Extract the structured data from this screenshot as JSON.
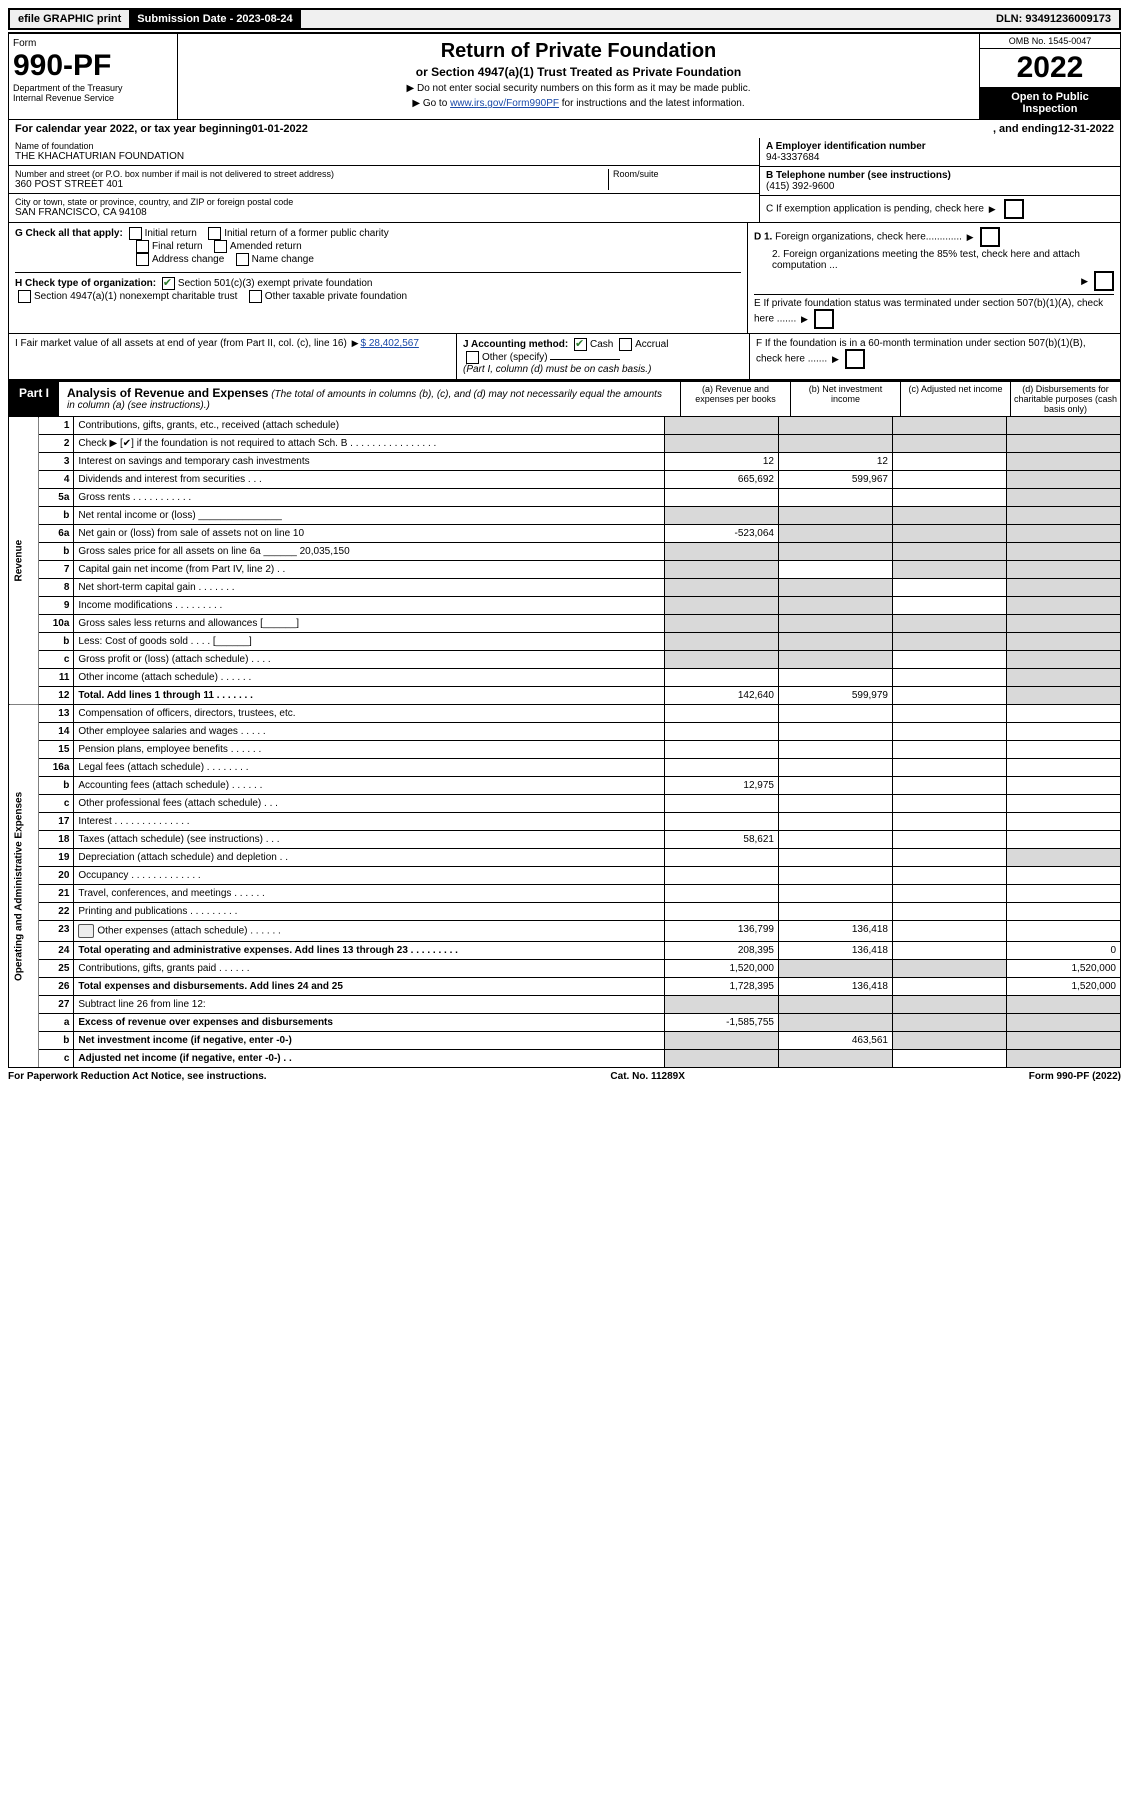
{
  "top": {
    "efile": "efile GRAPHIC print",
    "sub_label": "Submission Date - 2023-08-24",
    "dln": "DLN: 93491236009173"
  },
  "head": {
    "form_word": "Form",
    "form_num": "990-PF",
    "dept": "Department of the Treasury",
    "irs": "Internal Revenue Service",
    "title": "Return of Private Foundation",
    "sub": "or Section 4947(a)(1) Trust Treated as Private Foundation",
    "instr1": "▶ Do not enter social security numbers on this form as it may be made public.",
    "instr2_pre": "▶ Go to ",
    "instr2_link": "www.irs.gov/Form990PF",
    "instr2_post": " for instructions and the latest information.",
    "omb": "OMB No. 1545-0047",
    "year": "2022",
    "inspect": "Open to Public Inspection"
  },
  "cal": {
    "pre": "For calendar year 2022, or tax year beginning ",
    "begin": "01-01-2022",
    "mid": ", and ending ",
    "end": "12-31-2022"
  },
  "info": {
    "name_lbl": "Name of foundation",
    "name": "THE KHACHATURIAN FOUNDATION",
    "addr_lbl": "Number and street (or P.O. box number if mail is not delivered to street address)",
    "addr": "360 POST STREET 401",
    "room_lbl": "Room/suite",
    "city_lbl": "City or town, state or province, country, and ZIP or foreign postal code",
    "city": "SAN FRANCISCO, CA  94108",
    "a_lbl": "A Employer identification number",
    "a": "94-3337684",
    "b_lbl": "B Telephone number (see instructions)",
    "b": "(415) 392-9600",
    "c": "C If exemption application is pending, check here",
    "d1": "D 1. Foreign organizations, check here.............",
    "d2": "2. Foreign organizations meeting the 85% test, check here and attach computation ...",
    "e": "E If private foundation status was terminated under section 507(b)(1)(A), check here .......",
    "f": "F If the foundation is in a 60-month termination under section 507(b)(1)(B), check here ......."
  },
  "g": {
    "lbl": "G Check all that apply:",
    "opts": [
      "Initial return",
      "Initial return of a former public charity",
      "Final return",
      "Amended return",
      "Address change",
      "Name change"
    ]
  },
  "h": {
    "lbl": "H Check type of organization:",
    "o1": "Section 501(c)(3) exempt private foundation",
    "o2": "Section 4947(a)(1) nonexempt charitable trust",
    "o3": "Other taxable private foundation"
  },
  "i": {
    "lbl": "I Fair market value of all assets at end of year (from Part II, col. (c), line 16)",
    "val": "$  28,402,567"
  },
  "j": {
    "lbl": "J Accounting method:",
    "o1": "Cash",
    "o2": "Accrual",
    "o3": "Other (specify)",
    "note": "(Part I, column (d) must be on cash basis.)"
  },
  "part1": {
    "tag": "Part I",
    "title": "Analysis of Revenue and Expenses",
    "note": "(The total of amounts in columns (b), (c), and (d) may not necessarily equal the amounts in column (a) (see instructions).)",
    "cols": [
      "(a) Revenue and expenses per books",
      "(b) Net investment income",
      "(c) Adjusted net income",
      "(d) Disbursements for charitable purposes (cash basis only)"
    ]
  },
  "sides": {
    "rev": "Revenue",
    "exp": "Operating and Administrative Expenses"
  },
  "rows": [
    {
      "n": "1",
      "d": "Contributions, gifts, grants, etc., received (attach schedule)",
      "a": "",
      "b": "",
      "c": "",
      "dd": "",
      "sa": 1,
      "sb": 1,
      "sc": 1,
      "sd": 1
    },
    {
      "n": "2",
      "d": "Check ▶ [✔] if the foundation is not required to attach Sch. B  .  .  .  .  .  .  .  .  .  .  .  .  .  .  .  .",
      "a": "",
      "b": "",
      "c": "",
      "dd": "",
      "sa": 1,
      "sb": 1,
      "sc": 1,
      "sd": 1
    },
    {
      "n": "3",
      "d": "Interest on savings and temporary cash investments",
      "a": "12",
      "b": "12",
      "c": "",
      "dd": "",
      "sd": 1
    },
    {
      "n": "4",
      "d": "Dividends and interest from securities   .   .   .",
      "a": "665,692",
      "b": "599,967",
      "c": "",
      "dd": "",
      "sd": 1
    },
    {
      "n": "5a",
      "d": "Gross rents   .   .   .   .   .   .   .   .   .   .   .",
      "a": "",
      "b": "",
      "c": "",
      "dd": "",
      "sd": 1
    },
    {
      "n": "b",
      "d": "Net rental income or (loss)  _______________",
      "a": "",
      "b": "",
      "c": "",
      "dd": "",
      "sa": 1,
      "sb": 1,
      "sc": 1,
      "sd": 1
    },
    {
      "n": "6a",
      "d": "Net gain or (loss) from sale of assets not on line 10",
      "a": "-523,064",
      "b": "",
      "c": "",
      "dd": "",
      "sb": 1,
      "sc": 1,
      "sd": 1
    },
    {
      "n": "b",
      "d": "Gross sales price for all assets on line 6a ______ 20,035,150",
      "a": "",
      "b": "",
      "c": "",
      "dd": "",
      "sa": 1,
      "sb": 1,
      "sc": 1,
      "sd": 1
    },
    {
      "n": "7",
      "d": "Capital gain net income (from Part IV, line 2)   .  .",
      "a": "",
      "b": "",
      "c": "",
      "dd": "",
      "sa": 1,
      "sc": 1,
      "sd": 1
    },
    {
      "n": "8",
      "d": "Net short-term capital gain  .   .   .   .   .   .   .",
      "a": "",
      "b": "",
      "c": "",
      "dd": "",
      "sa": 1,
      "sb": 1,
      "sd": 1
    },
    {
      "n": "9",
      "d": "Income modifications  .   .   .   .   .   .   .   .   .",
      "a": "",
      "b": "",
      "c": "",
      "dd": "",
      "sa": 1,
      "sb": 1,
      "sd": 1
    },
    {
      "n": "10a",
      "d": "Gross sales less returns and allowances  [______]",
      "a": "",
      "b": "",
      "c": "",
      "dd": "",
      "sa": 1,
      "sb": 1,
      "sc": 1,
      "sd": 1
    },
    {
      "n": "b",
      "d": "Less: Cost of goods sold   .   .   .   .   [______]",
      "a": "",
      "b": "",
      "c": "",
      "dd": "",
      "sa": 1,
      "sb": 1,
      "sc": 1,
      "sd": 1
    },
    {
      "n": "c",
      "d": "Gross profit or (loss) (attach schedule)   .   .   .   .",
      "a": "",
      "b": "",
      "c": "",
      "dd": "",
      "sa": 1,
      "sb": 1,
      "sd": 1
    },
    {
      "n": "11",
      "d": "Other income (attach schedule)   .   .   .   .   .   .",
      "a": "",
      "b": "",
      "c": "",
      "dd": "",
      "sd": 1
    },
    {
      "n": "12",
      "d": "Total. Add lines 1 through 11   .   .   .   .   .   .   .",
      "a": "142,640",
      "b": "599,979",
      "c": "",
      "dd": "",
      "bold": 1,
      "sd": 1
    },
    {
      "n": "13",
      "d": "Compensation of officers, directors, trustees, etc.",
      "a": "",
      "b": "",
      "c": "",
      "dd": ""
    },
    {
      "n": "14",
      "d": "Other employee salaries and wages   .   .   .   .   .",
      "a": "",
      "b": "",
      "c": "",
      "dd": ""
    },
    {
      "n": "15",
      "d": "Pension plans, employee benefits  .   .   .   .   .   .",
      "a": "",
      "b": "",
      "c": "",
      "dd": ""
    },
    {
      "n": "16a",
      "d": "Legal fees (attach schedule)  .   .   .   .   .   .   .   .",
      "a": "",
      "b": "",
      "c": "",
      "dd": ""
    },
    {
      "n": "b",
      "d": "Accounting fees (attach schedule)  .   .   .   .   .   .",
      "a": "12,975",
      "b": "",
      "c": "",
      "dd": ""
    },
    {
      "n": "c",
      "d": "Other professional fees (attach schedule)   .   .   .",
      "a": "",
      "b": "",
      "c": "",
      "dd": ""
    },
    {
      "n": "17",
      "d": "Interest  .   .   .   .   .   .   .   .   .   .   .   .   .   .",
      "a": "",
      "b": "",
      "c": "",
      "dd": ""
    },
    {
      "n": "18",
      "d": "Taxes (attach schedule) (see instructions)   .   .   .",
      "a": "58,621",
      "b": "",
      "c": "",
      "dd": ""
    },
    {
      "n": "19",
      "d": "Depreciation (attach schedule) and depletion   .   .",
      "a": "",
      "b": "",
      "c": "",
      "dd": "",
      "sd": 1
    },
    {
      "n": "20",
      "d": "Occupancy  .   .   .   .   .   .   .   .   .   .   .   .   .",
      "a": "",
      "b": "",
      "c": "",
      "dd": ""
    },
    {
      "n": "21",
      "d": "Travel, conferences, and meetings  .   .   .   .   .   .",
      "a": "",
      "b": "",
      "c": "",
      "dd": ""
    },
    {
      "n": "22",
      "d": "Printing and publications  .   .   .   .   .   .   .   .   .",
      "a": "",
      "b": "",
      "c": "",
      "dd": ""
    },
    {
      "n": "23",
      "d": "Other expenses (attach schedule)  .   .   .   .   .   .",
      "a": "136,799",
      "b": "136,418",
      "c": "",
      "dd": "",
      "icon": 1
    },
    {
      "n": "24",
      "d": "Total operating and administrative expenses. Add lines 13 through 23   .   .   .   .   .   .   .   .   .",
      "a": "208,395",
      "b": "136,418",
      "c": "",
      "dd": "0",
      "bold": 1
    },
    {
      "n": "25",
      "d": "Contributions, gifts, grants paid   .   .   .   .   .   .",
      "a": "1,520,000",
      "b": "",
      "c": "",
      "dd": "1,520,000",
      "sb": 1,
      "sc": 1
    },
    {
      "n": "26",
      "d": "Total expenses and disbursements. Add lines 24 and 25",
      "a": "1,728,395",
      "b": "136,418",
      "c": "",
      "dd": "1,520,000",
      "bold": 1
    },
    {
      "n": "27",
      "d": "Subtract line 26 from line 12:",
      "a": "",
      "b": "",
      "c": "",
      "dd": "",
      "sa": 1,
      "sb": 1,
      "sc": 1,
      "sd": 1
    },
    {
      "n": "a",
      "d": "Excess of revenue over expenses and disbursements",
      "a": "-1,585,755",
      "b": "",
      "c": "",
      "dd": "",
      "bold": 1,
      "sb": 1,
      "sc": 1,
      "sd": 1
    },
    {
      "n": "b",
      "d": "Net investment income (if negative, enter -0-)",
      "a": "",
      "b": "463,561",
      "c": "",
      "dd": "",
      "bold": 1,
      "sa": 1,
      "sc": 1,
      "sd": 1
    },
    {
      "n": "c",
      "d": "Adjusted net income (if negative, enter -0-)   .   .",
      "a": "",
      "b": "",
      "c": "",
      "dd": "",
      "bold": 1,
      "sa": 1,
      "sb": 1,
      "sd": 1
    }
  ],
  "foot": {
    "l": "For Paperwork Reduction Act Notice, see instructions.",
    "m": "Cat. No. 11289X",
    "r": "Form 990-PF (2022)"
  }
}
